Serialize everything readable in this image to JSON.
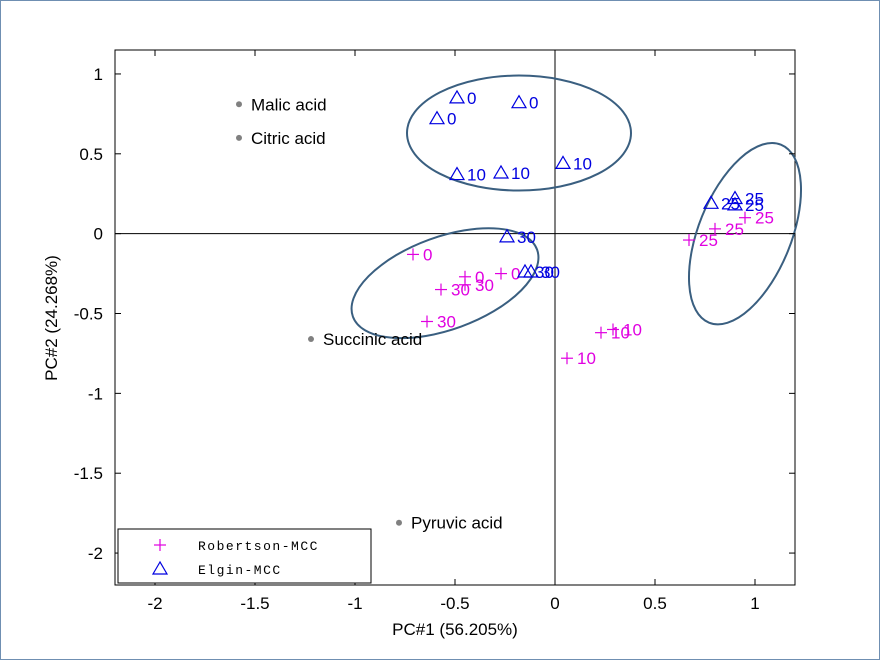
{
  "chart_data": {
    "type": "scatter",
    "xlabel": "PC#1 (56.205%)",
    "ylabel": "PC#2 (24.268%)",
    "xlim": [
      -2.2,
      1.2
    ],
    "ylim": [
      -2.2,
      1.15
    ],
    "xticks": [
      -2,
      -1.5,
      -1,
      -0.5,
      0,
      0.5,
      1
    ],
    "yticks": [
      1,
      0.5,
      0,
      -0.5,
      -1,
      -1.5,
      -2
    ],
    "xtick_labels": [
      "-2",
      "-1.5",
      "-1",
      "-0.5",
      "0",
      "0.5",
      "1"
    ],
    "ytick_labels": [
      "1",
      "0.5",
      "0",
      "-0.5",
      "-1",
      "-1.5",
      "-2"
    ],
    "zero_lines": true,
    "legend": {
      "placement": "bottom-left",
      "entries": [
        {
          "label": "Robertson-MCC",
          "marker": "plus",
          "color": "#e000e0"
        },
        {
          "label": "Elgin-MCC",
          "marker": "triangle",
          "color": "#0000e0"
        }
      ]
    },
    "series": [
      {
        "name": "Robertson-MCC",
        "marker": "plus",
        "color": "#e000e0",
        "points": [
          {
            "x": -0.71,
            "y": -0.13,
            "label": "0"
          },
          {
            "x": -0.45,
            "y": -0.27,
            "label": "0"
          },
          {
            "x": -0.27,
            "y": -0.25,
            "label": "0"
          },
          {
            "x": -0.57,
            "y": -0.35,
            "label": "30"
          },
          {
            "x": -0.45,
            "y": -0.32,
            "label": "30"
          },
          {
            "x": -0.64,
            "y": -0.55,
            "label": "30"
          },
          {
            "x": 0.23,
            "y": -0.62,
            "label": "10"
          },
          {
            "x": 0.29,
            "y": -0.6,
            "label": "10"
          },
          {
            "x": 0.06,
            "y": -0.78,
            "label": "10"
          },
          {
            "x": 0.67,
            "y": -0.04,
            "label": "25"
          },
          {
            "x": 0.8,
            "y": 0.03,
            "label": "25"
          },
          {
            "x": 0.95,
            "y": 0.1,
            "label": "25"
          }
        ]
      },
      {
        "name": "Elgin-MCC",
        "marker": "triangle",
        "color": "#0000e0",
        "points": [
          {
            "x": -0.49,
            "y": 0.85,
            "label": "0"
          },
          {
            "x": -0.59,
            "y": 0.72,
            "label": "0"
          },
          {
            "x": -0.18,
            "y": 0.82,
            "label": "0"
          },
          {
            "x": -0.49,
            "y": 0.37,
            "label": "10"
          },
          {
            "x": -0.27,
            "y": 0.38,
            "label": "10"
          },
          {
            "x": 0.04,
            "y": 0.44,
            "label": "10"
          },
          {
            "x": -0.24,
            "y": -0.02,
            "label": "30"
          },
          {
            "x": -0.15,
            "y": -0.24,
            "label": "30"
          },
          {
            "x": -0.12,
            "y": -0.24,
            "label": "30"
          },
          {
            "x": 0.78,
            "y": 0.19,
            "label": "25"
          },
          {
            "x": 0.9,
            "y": 0.22,
            "label": "25"
          },
          {
            "x": 0.9,
            "y": 0.18,
            "label": "25"
          }
        ]
      }
    ],
    "annotations": [
      {
        "x": -1.58,
        "y": 0.81,
        "label": "Malic acid"
      },
      {
        "x": -1.58,
        "y": 0.6,
        "label": "Citric acid"
      },
      {
        "x": -1.22,
        "y": -0.66,
        "label": "Succinic acid"
      },
      {
        "x": -0.78,
        "y": -1.81,
        "label": "Pyruvic acid"
      }
    ],
    "ellipses": [
      {
        "cx": -0.18,
        "cy": 0.63,
        "rx": 0.56,
        "ry": 0.36,
        "angle_deg": 0
      },
      {
        "cx": -0.55,
        "cy": -0.31,
        "rx": 0.49,
        "ry": 0.29,
        "angle_deg": 20
      },
      {
        "cx": 0.95,
        "cy": 0.0,
        "rx": 0.48,
        "ry": 0.29,
        "angle_deg": 68
      }
    ],
    "colors": {
      "robertson": "#e000e0",
      "elgin": "#0000e0",
      "ellipse": "#3a5f80",
      "annotation_dot": "#808080"
    }
  }
}
